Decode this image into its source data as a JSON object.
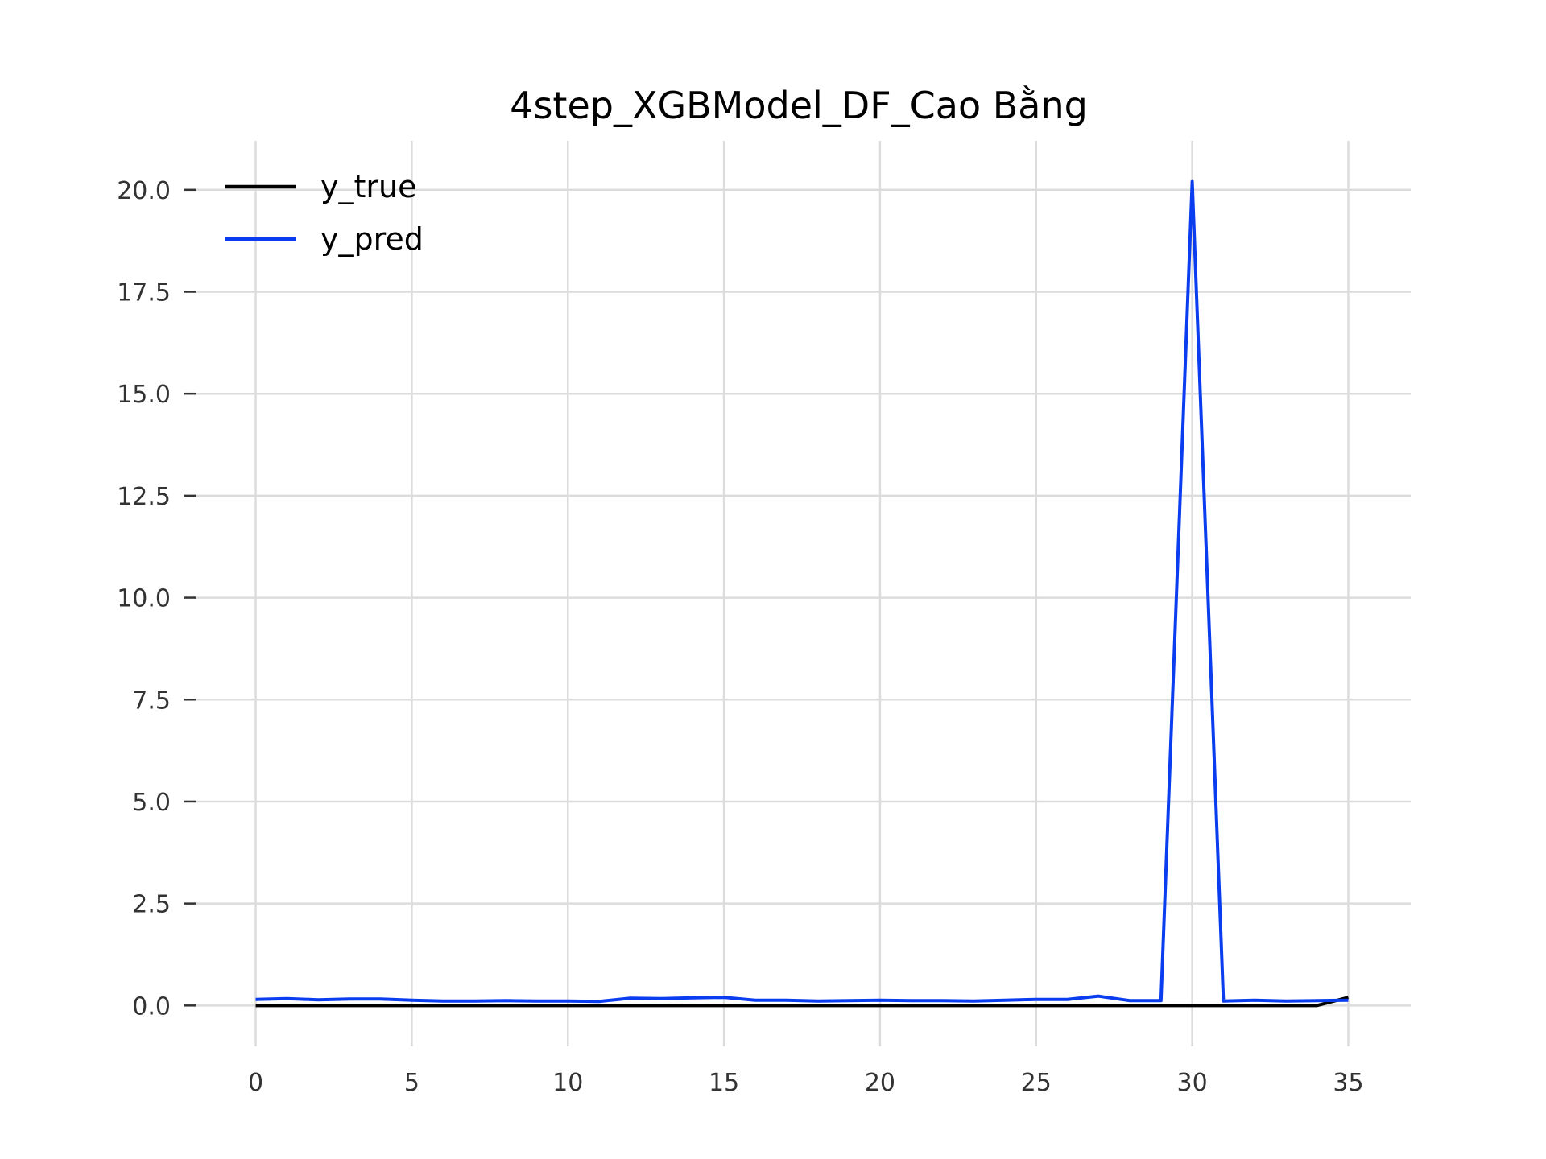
{
  "chart_data": {
    "type": "line",
    "title": "4step_XGBModel_DF_Cao Bằng",
    "xlabel": "",
    "ylabel": "",
    "xlim": [
      -2,
      37
    ],
    "ylim": [
      -1.0,
      21.2
    ],
    "grid": true,
    "legend_placement": "top-left",
    "x_ticks": [
      0,
      5,
      10,
      15,
      20,
      25,
      30,
      35
    ],
    "x_tick_labels": [
      "0",
      "5",
      "10",
      "15",
      "20",
      "25",
      "30",
      "35"
    ],
    "y_ticks": [
      0.0,
      2.5,
      5.0,
      7.5,
      10.0,
      12.5,
      15.0,
      17.5,
      20.0
    ],
    "y_tick_labels": [
      "0.0",
      "2.5",
      "5.0",
      "7.5",
      "10.0",
      "12.5",
      "15.0",
      "17.5",
      "20.0"
    ],
    "x": [
      0,
      1,
      2,
      3,
      4,
      5,
      6,
      7,
      8,
      9,
      10,
      11,
      12,
      13,
      14,
      15,
      16,
      17,
      18,
      19,
      20,
      21,
      22,
      23,
      24,
      25,
      26,
      27,
      28,
      29,
      30,
      31,
      32,
      33,
      34,
      35
    ],
    "series": [
      {
        "name": "y_true",
        "color": "#000000",
        "values": [
          0,
          0,
          0,
          0,
          0,
          0,
          0,
          0,
          0,
          0,
          0,
          0,
          0,
          0,
          0,
          0,
          0,
          0,
          0,
          0,
          0,
          0,
          0,
          0,
          0,
          0,
          0,
          0,
          0,
          0,
          0,
          0,
          0,
          0,
          0,
          0.2
        ]
      },
      {
        "name": "y_pred",
        "color": "#0a3cf0",
        "values": [
          0.15,
          0.17,
          0.14,
          0.16,
          0.16,
          0.13,
          0.11,
          0.11,
          0.12,
          0.11,
          0.11,
          0.1,
          0.18,
          0.17,
          0.19,
          0.2,
          0.13,
          0.13,
          0.11,
          0.12,
          0.13,
          0.12,
          0.12,
          0.11,
          0.13,
          0.15,
          0.15,
          0.23,
          0.12,
          0.12,
          20.2,
          0.11,
          0.13,
          0.11,
          0.12,
          0.13
        ]
      }
    ]
  }
}
